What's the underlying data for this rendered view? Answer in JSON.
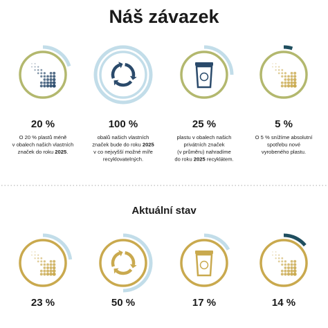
{
  "title": "Náš závazek",
  "commitments": [
    {
      "value": 20,
      "label": "20 %",
      "lines": [
        [
          "O 20 % plastů méně"
        ],
        [
          "v obalech našich vlastních"
        ],
        [
          "značek do roku ",
          "2025",
          "."
        ]
      ]
    },
    {
      "value": 100,
      "label": "100 %",
      "lines": [
        [
          "obalů našich vlastních"
        ],
        [
          "značek bude do roku ",
          "2025"
        ],
        [
          "v co nejvyšší možné míře"
        ],
        [
          "recyklovatelných."
        ]
      ]
    },
    {
      "value": 25,
      "label": "25 %",
      "lines": [
        [
          "plastu v obalech našich"
        ],
        [
          "privátních značek"
        ],
        [
          "(v průměru) nahradíme"
        ],
        [
          "do roku ",
          "2025",
          " recyklátem."
        ]
      ]
    },
    {
      "value": 5,
      "label": "5 %",
      "lines": [
        [
          "O 5 % snížíme absolutní"
        ],
        [
          "spotřebu nové"
        ],
        [
          "vyrobeného plastu."
        ]
      ]
    }
  ],
  "status_title": "Aktuální stav",
  "status": [
    {
      "value": 23,
      "label": "23 %"
    },
    {
      "value": 50,
      "label": "50 %"
    },
    {
      "value": 17,
      "label": "17 %"
    },
    {
      "value": 14,
      "label": "14 %"
    }
  ]
}
